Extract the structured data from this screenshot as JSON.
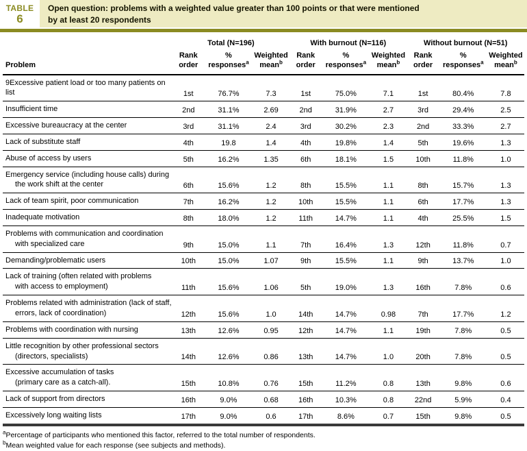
{
  "header": {
    "table_label_line1": "TABLE",
    "table_label_line2": "6",
    "title_line1": "Open question: problems with a weighted value greater than 100 points or that were mentioned",
    "title_line2": "by at least 20 respondents"
  },
  "colors": {
    "olive": "#8b8b22",
    "cream": "#eeebc2",
    "rule": "#8b8b22",
    "title_text": "#141400",
    "bottom_bar": "#3a3a3a"
  },
  "table": {
    "problem_header": "Problem",
    "groups": [
      {
        "label": "Total (N=196)"
      },
      {
        "label": "With burnout (N=116)"
      },
      {
        "label": "Without burnout (N=51)"
      }
    ],
    "subheaders": [
      {
        "line1": "Rank",
        "line2": "order",
        "sup": ""
      },
      {
        "line1": "%",
        "line2": "responses",
        "sup": "a"
      },
      {
        "line1": "Weighted",
        "line2": "mean",
        "sup": "b"
      }
    ],
    "rows": [
      {
        "label_lines": [
          "9Excessive patient load or too many patients on list"
        ],
        "cells": [
          "1st",
          "76.7%",
          "7.3",
          "1st",
          "75.0%",
          "7.1",
          "1st",
          "80.4%",
          "7.8"
        ]
      },
      {
        "label_lines": [
          "Insufficient time"
        ],
        "cells": [
          "2nd",
          "31.1%",
          "2.69",
          "2nd",
          "31.9%",
          "2.7",
          "3rd",
          "29.4%",
          "2.5"
        ]
      },
      {
        "label_lines": [
          "Excessive bureaucracy at the center"
        ],
        "cells": [
          "3rd",
          "31.1%",
          "2.4",
          "3rd",
          "30.2%",
          "2.3",
          "2nd",
          "33.3%",
          "2.7"
        ]
      },
      {
        "label_lines": [
          "Lack of substitute staff"
        ],
        "cells": [
          "4th",
          "19.8",
          "1.4",
          "4th",
          "19.8%",
          "1.4",
          "5th",
          "19.6%",
          "1.3"
        ]
      },
      {
        "label_lines": [
          "Abuse of access by users"
        ],
        "cells": [
          "5th",
          "16.2%",
          "1.35",
          "6th",
          "18.1%",
          "1.5",
          "10th",
          "11.8%",
          "1.0"
        ]
      },
      {
        "label_lines": [
          "Emergency service (including house calls) during",
          "the work shift at the center"
        ],
        "cells": [
          "6th",
          "15.6%",
          "1.2",
          "8th",
          "15.5%",
          "1.1",
          "8th",
          "15.7%",
          "1.3"
        ]
      },
      {
        "label_lines": [
          "Lack of team spirit, poor communication"
        ],
        "cells": [
          "7th",
          "16.2%",
          "1.2",
          "10th",
          "15.5%",
          "1.1",
          "6th",
          "17.7%",
          "1.3"
        ]
      },
      {
        "label_lines": [
          "Inadequate motivation"
        ],
        "cells": [
          "8th",
          "18.0%",
          "1.2",
          "11th",
          "14.7%",
          "1.1",
          "4th",
          "25.5%",
          "1.5"
        ]
      },
      {
        "label_lines": [
          "Problems with communication and coordination",
          "with specialized care"
        ],
        "cells": [
          "9th",
          "15.0%",
          "1.1",
          "7th",
          "16.4%",
          "1.3",
          "12th",
          "11.8%",
          "0.7"
        ]
      },
      {
        "label_lines": [
          "Demanding/problematic users"
        ],
        "cells": [
          "10th",
          "15.0%",
          "1.07",
          "9th",
          "15.5%",
          "1.1",
          "9th",
          "13.7%",
          "1.0"
        ]
      },
      {
        "label_lines": [
          "Lack of training (often related with problems",
          "with access to employment)"
        ],
        "cells": [
          "11th",
          "15.6%",
          "1.06",
          "5th",
          "19.0%",
          "1.3",
          "16th",
          "7.8%",
          "0.6"
        ]
      },
      {
        "label_lines": [
          "Problems related with administration (lack of staff,",
          "errors, lack of coordination)"
        ],
        "cells": [
          "12th",
          "15.6%",
          "1.0",
          "14th",
          "14.7%",
          "0.98",
          "7th",
          "17.7%",
          "1.2"
        ]
      },
      {
        "label_lines": [
          "Problems with coordination with nursing"
        ],
        "cells": [
          "13th",
          "12.6%",
          "0.95",
          "12th",
          "14.7%",
          "1.1",
          "19th",
          "7.8%",
          "0.5"
        ]
      },
      {
        "label_lines": [
          "Little recognition by other professional sectors",
          "(directors, specialists)"
        ],
        "cells": [
          "14th",
          "12.6%",
          "0.86",
          "13th",
          "14.7%",
          "1.0",
          "20th",
          "7.8%",
          "0.5"
        ]
      },
      {
        "label_lines": [
          "Excessive accumulation of tasks",
          "(primary care as a catch-all)."
        ],
        "cells": [
          "15th",
          "10.8%",
          "0.76",
          "15th",
          "11.2%",
          "0.8",
          "13th",
          "9.8%",
          "0.6"
        ]
      },
      {
        "label_lines": [
          "Lack of support from directors"
        ],
        "cells": [
          "16th",
          "9.0%",
          "0.68",
          "16th",
          "10.3%",
          "0.8",
          "22nd",
          "5.9%",
          "0.4"
        ]
      },
      {
        "label_lines": [
          "Excessively long waiting lists"
        ],
        "cells": [
          "17th",
          "9.0%",
          "0.6",
          "17th",
          "8.6%",
          "0.7",
          "15th",
          "9.8%",
          "0.5"
        ]
      }
    ]
  },
  "footnotes": [
    {
      "sup": "a",
      "text": "Percentage of participants who mentioned this factor, referred to the total number of respondents."
    },
    {
      "sup": "b",
      "text": "Mean weighted value for each response (see subjects and methods)."
    }
  ]
}
